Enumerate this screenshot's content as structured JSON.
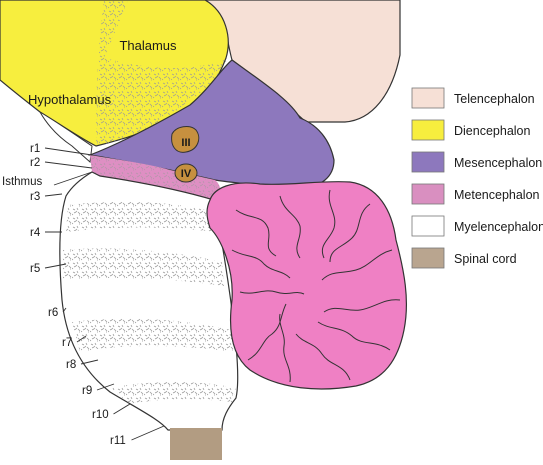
{
  "regions": {
    "thalamus": "Thalamus",
    "hypothalamus": "Hypothalamus",
    "isthmus": "Isthmus"
  },
  "nuclei": {
    "iii": "III",
    "iv": "IV"
  },
  "rhombomeres": [
    "r1",
    "r2",
    "r3",
    "r4",
    "r5",
    "r6",
    "r7",
    "r8",
    "r9",
    "r10",
    "r11"
  ],
  "legend": [
    {
      "label": "Telencephalon",
      "color": "#f6e0d6"
    },
    {
      "label": "Diencephalon",
      "color": "#f7ee3e"
    },
    {
      "label": "Mesencephalon",
      "color": "#8d78bd"
    },
    {
      "label": "Metencephalon",
      "color": "#d98fc0"
    },
    {
      "label": "Myelencephalon",
      "color": "#ffffff"
    },
    {
      "label": "Spinal cord",
      "color": "#b9a58f"
    }
  ],
  "colors": {
    "telencephalon": "#f6e0d6",
    "diencephalon": "#f7ee3e",
    "mesencephalon": "#8d78bd",
    "metencephalon_stripe": "#de8fc3",
    "cerebellum": "#ef80c4",
    "spinal_cord": "#b29c82",
    "nucleus": "#c6903f",
    "stipple": "#9a9a9a"
  }
}
